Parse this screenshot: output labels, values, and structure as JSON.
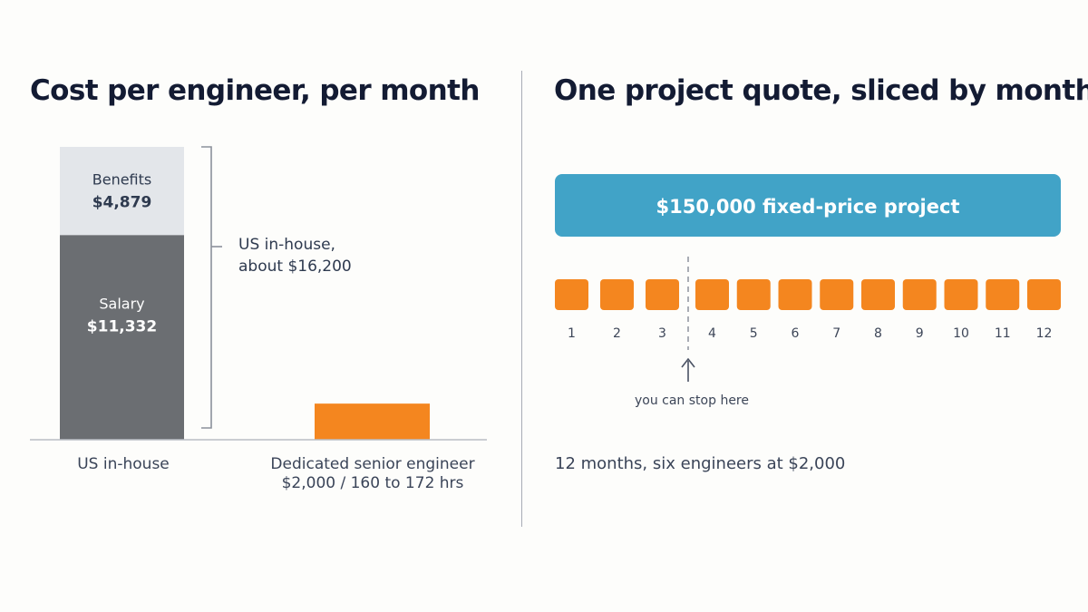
{
  "left_panel": {
    "title": "Cost per engineer, per month",
    "bracket_label": [
      "US in-house,",
      "about $16,200"
    ]
  },
  "right_panel": {
    "title": "One project quote, sliced by month",
    "banner": "$150,000 fixed-price project",
    "stop_note": "you can stop here",
    "summary": "12 months, six engineers at $2,000"
  },
  "colors": {
    "benefits": "#e3e6ea",
    "salary": "#6b6e72",
    "dedicated": "#f4861f",
    "banner": "#41a3c7",
    "month_block": "#f4861f"
  },
  "chart_data": [
    {
      "type": "bar",
      "stacked": true,
      "title": "Cost per engineer, per month",
      "categories": [
        "US in-house",
        "Dedicated senior engineer"
      ],
      "category_sublabels": [
        "",
        "$2,000 / 160 to 172 hrs"
      ],
      "series": [
        {
          "name": "Salary",
          "value_label": "$11,332",
          "values": [
            11332,
            0
          ]
        },
        {
          "name": "Benefits",
          "value_label": "$4,879",
          "values": [
            4879,
            0
          ]
        },
        {
          "name": "",
          "values": [
            0,
            2000
          ]
        }
      ],
      "ylim": [
        0,
        16211
      ],
      "grid": false
    },
    {
      "type": "bar",
      "title": "One project quote, sliced by month",
      "categories": [
        "1",
        "2",
        "3",
        "4",
        "5",
        "6",
        "7",
        "8",
        "9",
        "10",
        "11",
        "12"
      ],
      "stop_after_month": 3
    }
  ]
}
